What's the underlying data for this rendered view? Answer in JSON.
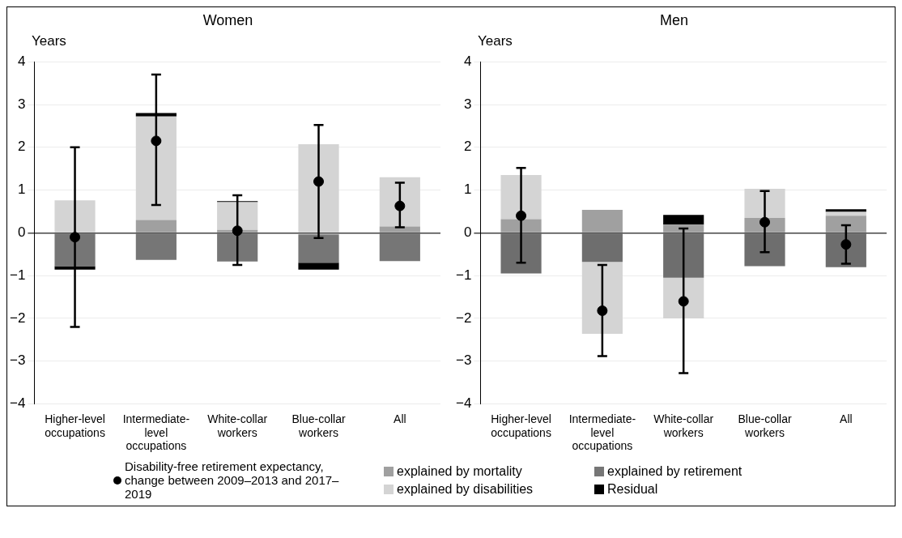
{
  "chart_data": [
    {
      "type": "bar",
      "title": "Women",
      "ylabel": "Years",
      "stacked": true,
      "grid": "y",
      "legend": "bottom",
      "categories": [
        "Higher-level occupations",
        "Intermediate-level occupations",
        "White-collar workers",
        "Blue-collar workers",
        "All"
      ],
      "ylim": [
        -4,
        4
      ],
      "yticks": [
        {
          "value": -4,
          "label": "−4"
        },
        {
          "value": -3,
          "label": "−3"
        },
        {
          "value": -2,
          "label": "−2"
        },
        {
          "value": -1,
          "label": "−1"
        },
        0,
        1,
        2,
        3,
        4
      ],
      "series": [
        {
          "name": "explained by mortality",
          "color": "#a0a0a0",
          "values": [
            null,
            0.3,
            0.07,
            -0.05,
            0.15
          ]
        },
        {
          "name": "explained by retirement",
          "color": "#767676",
          "values": [
            -0.78,
            -0.63,
            -0.67,
            -0.65,
            -0.66
          ]
        },
        {
          "name": "explained by disabilities",
          "color": "#d4d4d4",
          "values": [
            0.76,
            2.42,
            0.65,
            2.07,
            1.15
          ]
        },
        {
          "name": "Residual",
          "color": "#000000",
          "values": [
            -0.08,
            0.08,
            0.02,
            -0.16,
            null
          ]
        },
        {
          "name": "Disability-free retirement expectancy, change between 2009–2013 and 2017–2019",
          "type": "scatter",
          "marker": "circle",
          "color": "#000000",
          "values": [
            -0.1,
            2.15,
            0.05,
            1.2,
            0.63
          ],
          "errors": [
            [
              -2.2,
              2.0
            ],
            [
              0.65,
              3.7
            ],
            [
              -0.75,
              0.88
            ],
            [
              -0.12,
              2.52
            ],
            [
              0.13,
              1.17
            ]
          ]
        }
      ]
    },
    {
      "type": "bar",
      "title": "Men",
      "ylabel": "Years",
      "stacked": true,
      "grid": "y",
      "legend": false,
      "categories": [
        "Higher-level occupations",
        "Intermediate-level occupations",
        "White-collar workers",
        "Blue-collar workers",
        "All"
      ],
      "ylim": [
        -4,
        4
      ],
      "yticks": [
        {
          "value": -4,
          "label": "−4"
        },
        {
          "value": -3,
          "label": "−3"
        },
        {
          "value": -2,
          "label": "−2"
        },
        {
          "value": -1,
          "label": "−1"
        },
        0,
        1,
        2,
        3,
        4
      ],
      "series": [
        {
          "color": "#a0a0a0",
          "values": [
            0.32,
            0.54,
            0.19,
            0.35,
            0.4
          ]
        },
        {
          "color": "#6e6e6e",
          "values": [
            -0.95,
            -0.68,
            -1.05,
            -0.78,
            -0.8
          ]
        },
        {
          "color": "#d4d4d4",
          "values": [
            1.03,
            -1.68,
            -0.95,
            0.68,
            0.09
          ]
        },
        {
          "color": "#000000",
          "values": [
            null,
            null,
            0.23,
            null,
            0.06
          ]
        },
        {
          "type": "scatter",
          "marker": "circle",
          "color": "#000000",
          "values": [
            0.4,
            -1.82,
            -1.6,
            0.25,
            -0.27
          ],
          "errors": [
            [
              -0.7,
              1.52
            ],
            [
              -2.88,
              -0.75
            ],
            [
              -3.28,
              0.1
            ],
            [
              -0.45,
              0.98
            ],
            [
              -0.72,
              0.18
            ]
          ]
        }
      ]
    }
  ]
}
